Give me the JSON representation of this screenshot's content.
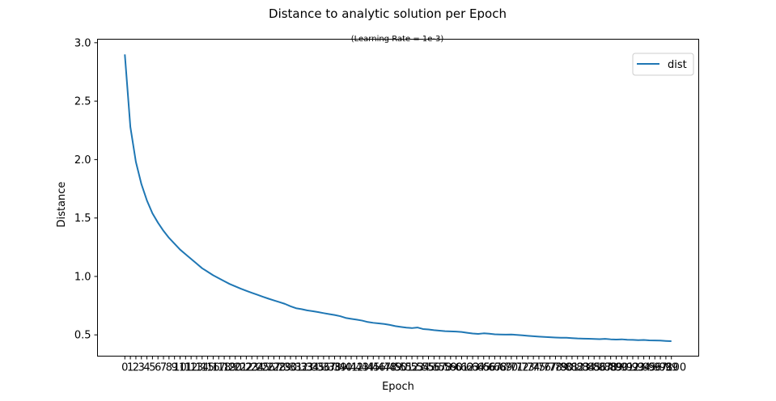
{
  "chart_data": {
    "type": "line",
    "title": "Distance to analytic solution per Epoch",
    "subtitle": "(Learning Rate = 1e-3)",
    "xlabel": "Epoch",
    "ylabel": "Distance",
    "xlim": [
      -4.95,
      103.95
    ],
    "ylim": [
      0.318,
      3.03
    ],
    "y_ticks": [
      "0.5",
      "1.0",
      "1.5",
      "2.0",
      "2.5",
      "3.0"
    ],
    "y_tick_values": [
      0.5,
      1.0,
      1.5,
      2.0,
      2.5,
      3.0
    ],
    "x_tick_count": 100,
    "x_tick_label_first": "0",
    "x_tick_label_last": "100",
    "grid": false,
    "legend": {
      "position": "top-right",
      "entries": [
        "dist"
      ]
    },
    "series": [
      {
        "name": "dist",
        "color": "#1f77b4",
        "x": [
          0,
          1,
          2,
          3,
          4,
          5,
          6,
          7,
          8,
          9,
          10,
          11,
          12,
          13,
          14,
          15,
          16,
          17,
          18,
          19,
          20,
          21,
          22,
          23,
          24,
          25,
          26,
          27,
          28,
          29,
          30,
          31,
          32,
          33,
          34,
          35,
          36,
          37,
          38,
          39,
          40,
          41,
          42,
          43,
          44,
          45,
          46,
          47,
          48,
          49,
          50,
          51,
          52,
          53,
          54,
          55,
          56,
          57,
          58,
          59,
          60,
          61,
          62,
          63,
          64,
          65,
          66,
          67,
          68,
          69,
          70,
          71,
          72,
          73,
          74,
          75,
          76,
          77,
          78,
          79,
          80,
          81,
          82,
          83,
          84,
          85,
          86,
          87,
          88,
          89,
          90,
          91,
          92,
          93,
          94,
          95,
          96,
          97,
          98,
          99
        ],
        "values": [
          2.9,
          2.28,
          1.98,
          1.79,
          1.65,
          1.54,
          1.46,
          1.39,
          1.33,
          1.28,
          1.23,
          1.19,
          1.15,
          1.11,
          1.07,
          1.04,
          1.01,
          0.985,
          0.96,
          0.935,
          0.915,
          0.895,
          0.877,
          0.86,
          0.843,
          0.826,
          0.81,
          0.795,
          0.78,
          0.765,
          0.745,
          0.728,
          0.72,
          0.71,
          0.703,
          0.695,
          0.686,
          0.678,
          0.67,
          0.66,
          0.645,
          0.637,
          0.63,
          0.622,
          0.61,
          0.603,
          0.598,
          0.593,
          0.585,
          0.575,
          0.568,
          0.562,
          0.558,
          0.563,
          0.55,
          0.546,
          0.54,
          0.536,
          0.532,
          0.53,
          0.528,
          0.525,
          0.518,
          0.512,
          0.508,
          0.513,
          0.51,
          0.505,
          0.503,
          0.502,
          0.503,
          0.5,
          0.496,
          0.492,
          0.488,
          0.485,
          0.482,
          0.48,
          0.477,
          0.475,
          0.475,
          0.472,
          0.469,
          0.468,
          0.467,
          0.465,
          0.463,
          0.466,
          0.462,
          0.46,
          0.462,
          0.458,
          0.457,
          0.455,
          0.456,
          0.453,
          0.452,
          0.451,
          0.448,
          0.446
        ]
      }
    ]
  }
}
